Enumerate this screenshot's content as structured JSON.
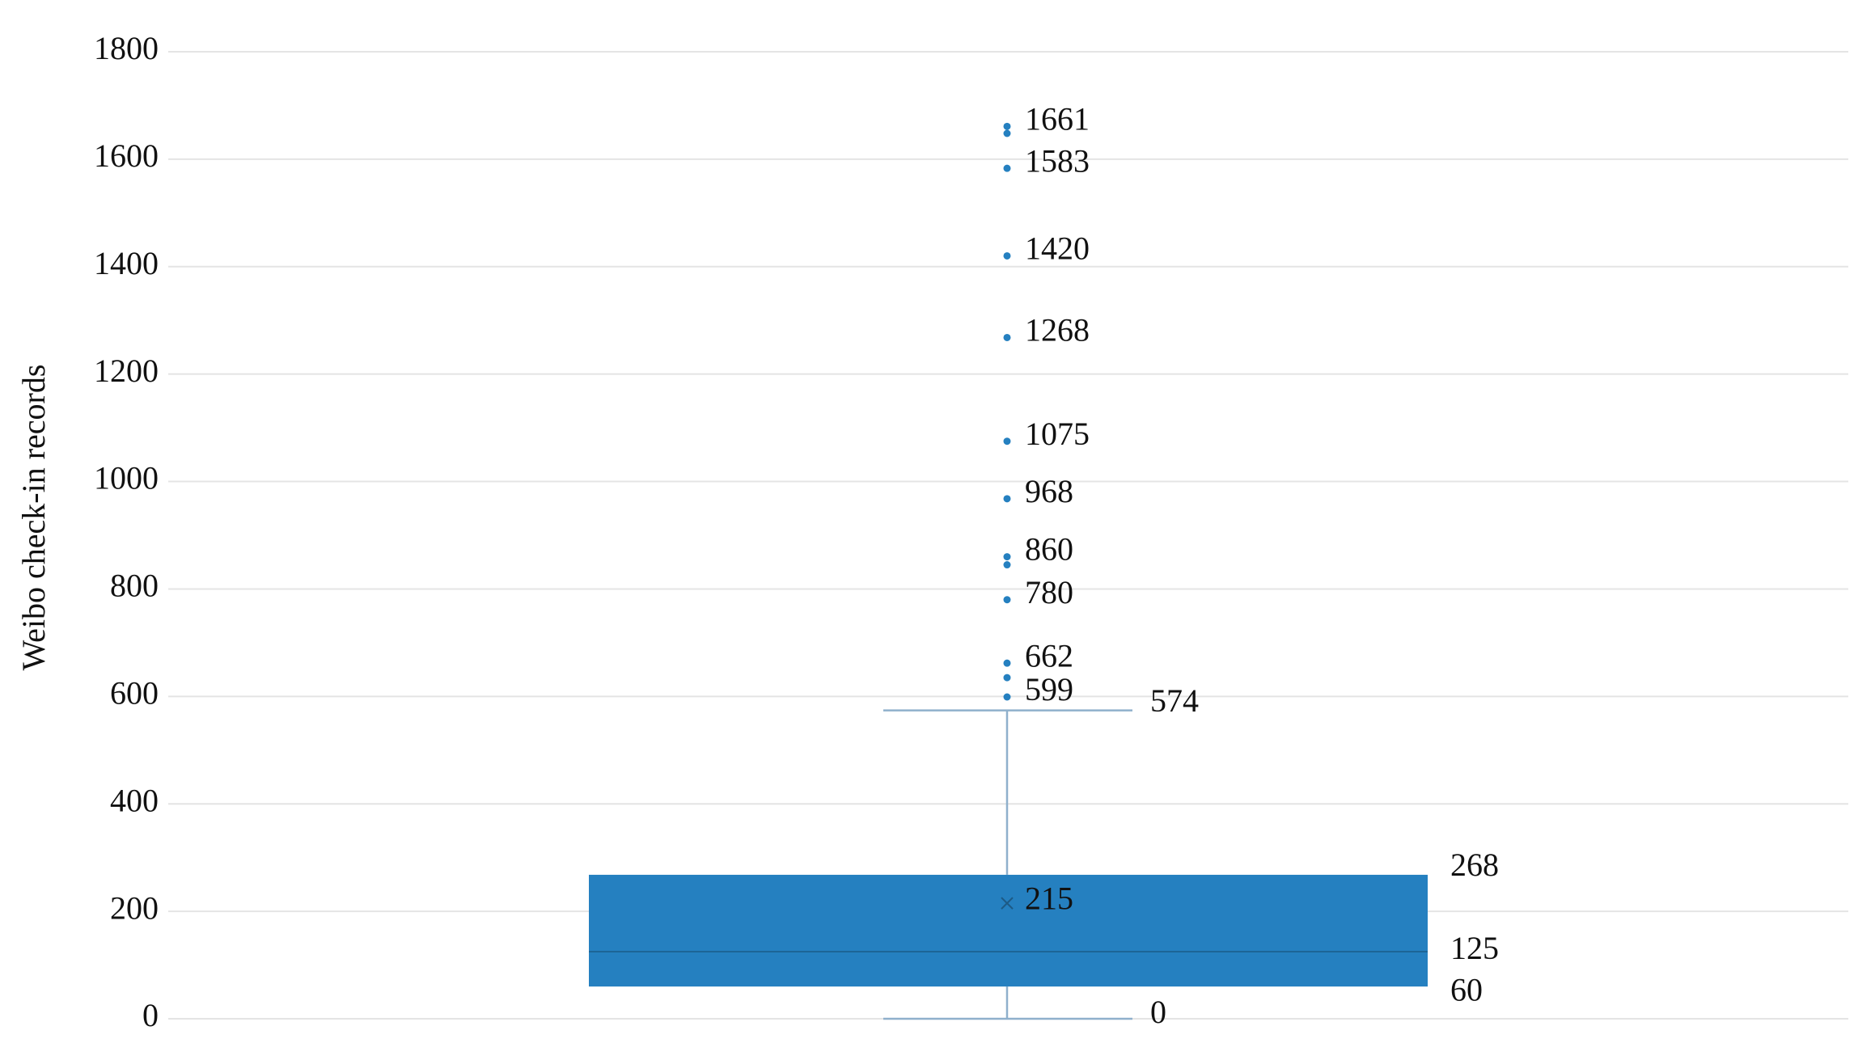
{
  "chart_data": {
    "type": "box",
    "y_label": "Weibo check-in records",
    "ylim": [
      0,
      1800
    ],
    "yticks": [
      0,
      200,
      400,
      600,
      800,
      1000,
      1200,
      1400,
      1600,
      1800
    ],
    "grid": true,
    "color": "#2580c0",
    "median_color": "#1d6597",
    "whisker_color": "#8fb0cc",
    "min": 0,
    "q1": 60,
    "median": 125,
    "q3": 268,
    "max": 574,
    "mean": 215,
    "outliers": [
      599,
      635,
      662,
      780,
      845,
      860,
      968,
      1075,
      1268,
      1420,
      1583,
      1648,
      1661
    ],
    "outlier_labels": [
      "599",
      null,
      "662",
      "780",
      null,
      "860",
      "968",
      "1075",
      "1268",
      "1420",
      "1583",
      null,
      "1661"
    ]
  }
}
